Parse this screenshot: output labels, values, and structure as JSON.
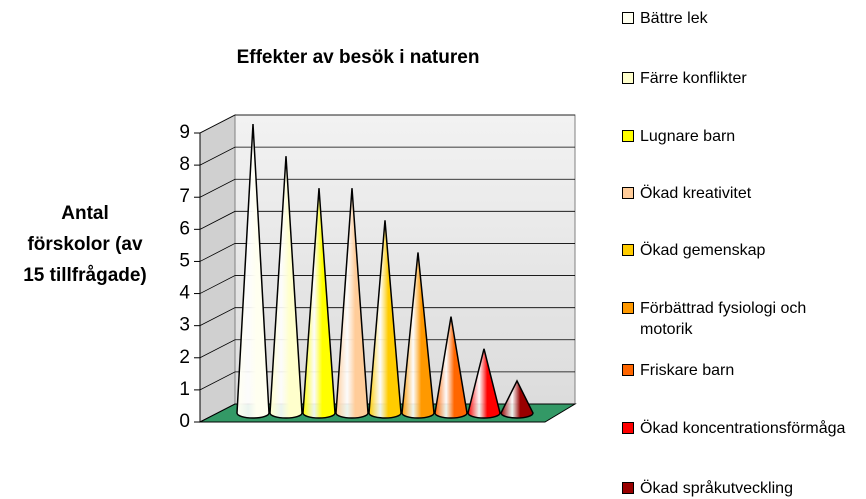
{
  "chart_data": {
    "type": "cone",
    "title": "Effekter av besök i naturen",
    "ylabel": "Antal förskolor (av 15 tillfrågade)",
    "categories": [
      "Bättre lek",
      "Färre konflikter",
      "Lugnare barn",
      "Ökad kreativitet",
      "Ökad gemenskap",
      "Förbättrad fysiologi och motorik",
      "Friskare barn",
      "Ökad koncentrationsförmåga",
      "Ökad språkutveckling"
    ],
    "values": [
      9,
      8,
      7,
      7,
      6,
      5,
      3,
      2,
      1
    ],
    "colors": [
      "#fffff0",
      "#ffffcc",
      "#ffff00",
      "#ffcc99",
      "#ffcc00",
      "#ff9900",
      "#ff6600",
      "#ff0000",
      "#990000"
    ],
    "ylim": [
      0,
      9
    ],
    "yticks": [
      0,
      1,
      2,
      3,
      4,
      5,
      6,
      7,
      8,
      9
    ],
    "grid": true,
    "legend": "right"
  }
}
